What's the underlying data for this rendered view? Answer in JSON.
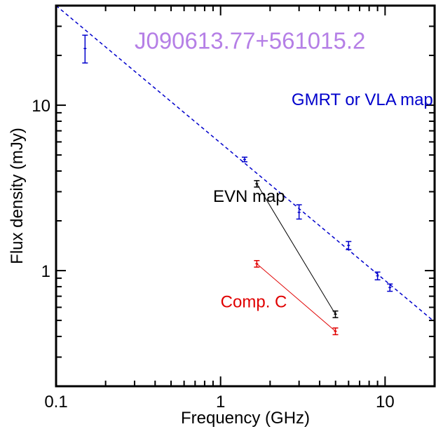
{
  "chart_data": {
    "type": "scatter",
    "title": "J090613.77+561015.2",
    "xlabel": "Frequency (GHz)",
    "ylabel": "Flux density (mJy)",
    "xscale": "log",
    "yscale": "log",
    "xlim": [
      0.1,
      20
    ],
    "ylim": [
      0.2,
      40
    ],
    "grid": false,
    "x_tick_labels": [
      {
        "value": 0.1,
        "label": "0.1"
      },
      {
        "value": 1,
        "label": "1"
      },
      {
        "value": 10,
        "label": "10"
      }
    ],
    "y_tick_labels": [
      {
        "value": 1,
        "label": "1"
      },
      {
        "value": 10,
        "label": "10"
      }
    ],
    "colors": {
      "title": "#b57fe6",
      "gmrt_vla": "#0000cc",
      "evn": "#000000",
      "comp_c": "#e00000",
      "axes": "#000000"
    },
    "annotations": [
      {
        "text": "J090613.77+561015.2",
        "x": 0.3,
        "y": 22,
        "color": "#b57fe6",
        "style": "big"
      },
      {
        "text": "GMRT or VLA map",
        "x": 2.7,
        "y": 10,
        "color": "#0000cc",
        "style": "normal"
      },
      {
        "text": "EVN map",
        "x": 0.9,
        "y": 2.6,
        "color": "#000000",
        "style": "normal"
      },
      {
        "text": "Comp. C",
        "x": 1.0,
        "y": 0.6,
        "color": "#e00000",
        "style": "normal"
      }
    ],
    "fit_line": {
      "color": "#0000cc",
      "dashed": true,
      "x": [
        0.1,
        20
      ],
      "y": [
        40,
        0.49
      ]
    },
    "series": [
      {
        "color": "#0000cc",
        "connect": false,
        "points": [
          {
            "x": 0.15,
            "y": 22,
            "err": [
              18,
              26.5
            ]
          },
          {
            "x": 1.4,
            "y": 4.7,
            "err": [
              4.55,
              4.85
            ]
          },
          {
            "x": 3.0,
            "y": 2.25,
            "err": [
              2.05,
              2.5
            ]
          },
          {
            "x": 6.0,
            "y": 1.42,
            "err": [
              1.34,
              1.5
            ]
          },
          {
            "x": 9.0,
            "y": 0.93,
            "err": [
              0.88,
              0.98
            ]
          },
          {
            "x": 10.7,
            "y": 0.79,
            "err": [
              0.75,
              0.83
            ]
          }
        ]
      },
      {
        "color": "#000000",
        "connect": true,
        "points": [
          {
            "x": 1.66,
            "y": 3.35,
            "err": [
              3.2,
              3.5
            ]
          },
          {
            "x": 4.99,
            "y": 0.545,
            "err": [
              0.52,
              0.57
            ]
          }
        ]
      },
      {
        "color": "#e00000",
        "connect": true,
        "points": [
          {
            "x": 1.66,
            "y": 1.1,
            "err": [
              1.05,
              1.15
            ]
          },
          {
            "x": 4.99,
            "y": 0.43,
            "err": [
              0.41,
              0.45
            ]
          }
        ]
      }
    ]
  }
}
